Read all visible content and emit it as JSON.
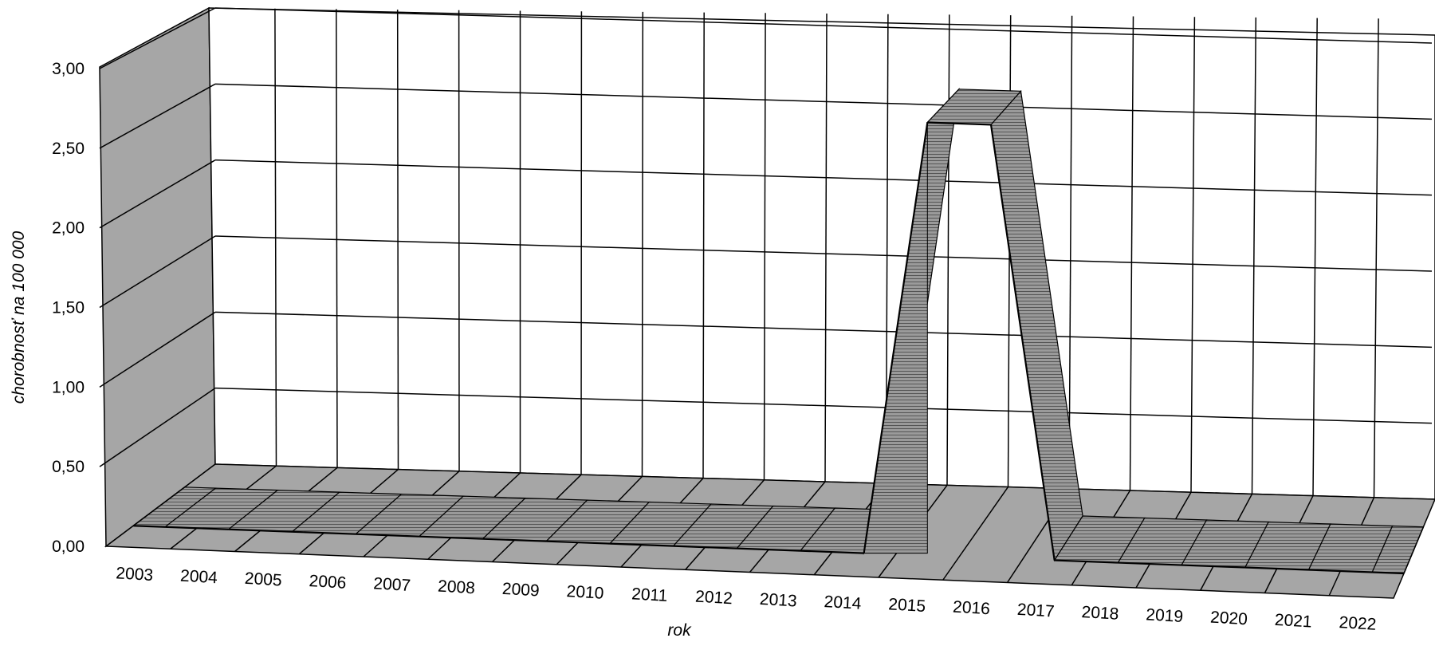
{
  "chart_data": {
    "type": "area",
    "view": "3d-ribbon",
    "title": "",
    "xlabel": "rok",
    "ylabel": "chorobnosť na 100 000",
    "categories": [
      "2003",
      "2004",
      "2005",
      "2006",
      "2007",
      "2008",
      "2009",
      "2010",
      "2011",
      "2012",
      "2013",
      "2014",
      "2015",
      "2016",
      "2017",
      "2018",
      "2019",
      "2020",
      "2021",
      "2022"
    ],
    "values": [
      0,
      0,
      0,
      0,
      0,
      0,
      0,
      0,
      0,
      0,
      0,
      0,
      2.75,
      2.75,
      0,
      0,
      0,
      0,
      0,
      0
    ],
    "yticks": [
      "0,00",
      "0,50",
      "1,00",
      "1,50",
      "2,00",
      "2,50",
      "3,00"
    ],
    "ylim": [
      0,
      3
    ],
    "grid": true,
    "legend": "none",
    "colors": {
      "wall": "#ffffff",
      "side_wall": "#a6a6a6",
      "floor": "#a6a6a6",
      "ribbon": "#c9c9c9",
      "ribbon_side": "#8f8f8f",
      "line": "#000000"
    }
  }
}
